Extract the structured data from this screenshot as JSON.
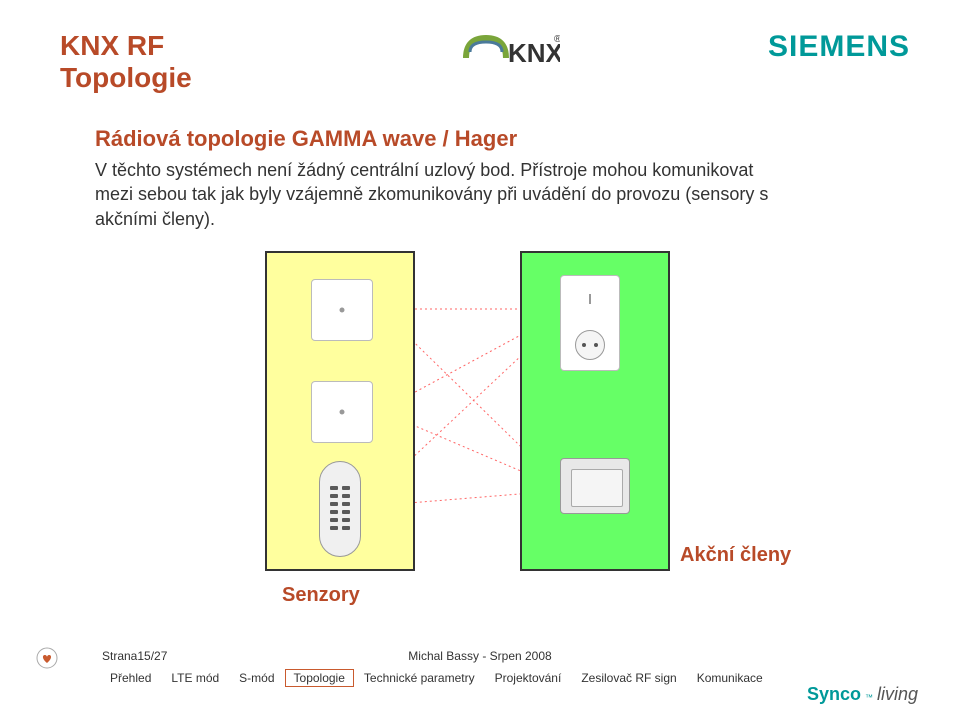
{
  "colors": {
    "brand_orange": "#b84a28",
    "brand_teal": "#009999",
    "panel_left_bg": "#ffff9e",
    "panel_right_bg": "#66ff66",
    "line_color": "#ff6666"
  },
  "header": {
    "title_line1": "KNX RF",
    "title_line2": "Topologie",
    "siemens": "SIEMENS",
    "knx_text": "KNX"
  },
  "content": {
    "subtitle": "Rádiová topologie GAMMA wave / Hager",
    "body": "V těchto systémech není žádný centrální uzlový bod. Přístroje mohou komunikovat mezi sebou tak jak byly vzájemně zkomunikovány při uvádění do provozu (sensory s akčními členy)."
  },
  "labels": {
    "senzory": "Senzory",
    "akcni_cleny": "Akční členy"
  },
  "footer": {
    "page_info": "Strana15/27",
    "author": "Michal Bassy - Srpen 2008",
    "tabs": [
      "Přehled",
      "LTE mód",
      "S-mód",
      "Topologie",
      "Technické parametry",
      "Projektování",
      "Zesilovač RF sign",
      "Komunikace"
    ],
    "active_tab_index": 3,
    "brand_synco": "Synco",
    "brand_tm": "™",
    "brand_living": "living"
  }
}
